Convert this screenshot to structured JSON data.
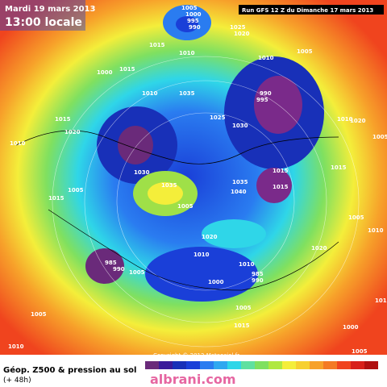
{
  "header": {
    "date": "Mardi 19 mars 2013",
    "time": "13:00 locale",
    "run": "Run GFS 12 Z du Dimanche 17 mars 2013"
  },
  "footer": {
    "title": "Géop. Z500 & pression au sol",
    "lead": "(+ 48h)",
    "copyright": "Copyright © 2012 Meteociel.fr",
    "watermark": "albrani.com"
  },
  "isobar_labels": [
    "1005",
    "1000",
    "995",
    "990",
    "1015",
    "1010",
    "1025",
    "1020",
    "1005",
    "1010",
    "1000",
    "1015",
    "1010",
    "1035",
    "1025",
    "1030",
    "1015",
    "1020",
    "1030",
    "1035",
    "1005",
    "1015",
    "1010",
    "1005",
    "1015",
    "1035",
    "1040",
    "1015",
    "1020",
    "1010",
    "1010",
    "985",
    "990",
    "1005",
    "1000",
    "985",
    "990",
    "1005",
    "1015",
    "1005",
    "1010",
    "1000",
    "1005",
    "1010",
    "1005",
    "1010",
    "1020",
    "1015",
    "1005",
    "1010",
    "1020",
    "995",
    "990"
  ]
}
